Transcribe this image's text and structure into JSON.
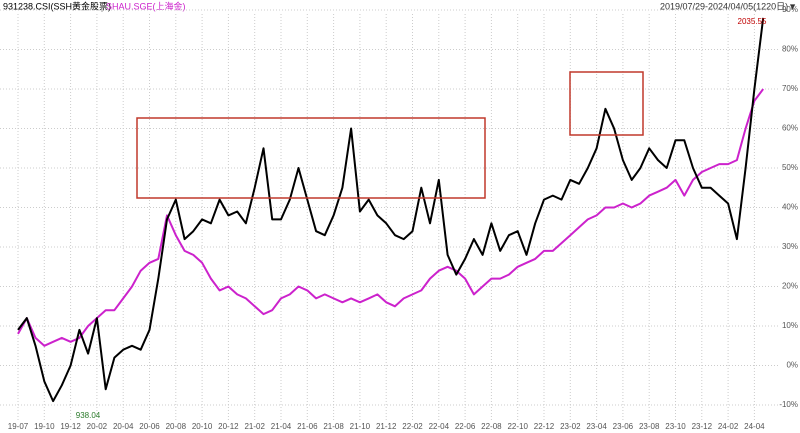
{
  "chart_data": {
    "type": "line",
    "date_range": "2019/07/29-2024/04/05(1220日)▼",
    "categories": [
      "19-07",
      null,
      null,
      "19-10",
      null,
      null,
      "19-12",
      null,
      null,
      "20-02",
      null,
      null,
      "20-04",
      null,
      null,
      "20-06",
      null,
      null,
      "20-08",
      null,
      null,
      "20-10",
      null,
      null,
      "20-12",
      null,
      null,
      "21-02",
      null,
      null,
      "21-04",
      null,
      null,
      "21-06",
      null,
      null,
      "21-08",
      null,
      null,
      "21-10",
      null,
      null,
      "21-12",
      null,
      null,
      "22-02",
      null,
      null,
      "22-04",
      null,
      null,
      "22-06",
      null,
      null,
      "22-08",
      null,
      null,
      "22-10",
      null,
      null,
      "22-12",
      null,
      null,
      "23-02",
      null,
      null,
      "23-04",
      null,
      null,
      "23-06",
      null,
      null,
      "23-08",
      null,
      null,
      "23-10",
      null,
      null,
      "23-12",
      null,
      null,
      "24-02",
      null,
      null,
      "24-04",
      null
    ],
    "series": [
      {
        "name": "931238.CSI(SSH黄金股票)",
        "color": "#000000",
        "values": [
          9,
          12,
          5,
          -4,
          -9,
          -5,
          0,
          9,
          3,
          12,
          -6,
          2,
          4,
          5,
          4,
          9,
          22,
          37,
          42,
          32,
          34,
          37,
          36,
          42,
          38,
          39,
          36,
          45,
          55,
          37,
          37,
          42,
          50,
          42,
          34,
          33,
          38,
          45,
          60,
          39,
          42,
          38,
          36,
          33,
          32,
          34,
          45,
          36,
          47,
          28,
          23,
          27,
          32,
          28,
          36,
          29,
          33,
          34,
          28,
          36,
          42,
          43,
          42,
          47,
          46,
          50,
          55,
          65,
          60,
          52,
          47,
          50,
          55,
          52,
          50,
          57,
          57,
          50,
          45,
          45,
          43,
          41,
          32,
          50,
          70,
          88
        ]
      },
      {
        "name": "SHAU.SGE(上海金)",
        "color": "#cc22cc",
        "values": [
          8,
          12,
          7,
          5,
          6,
          7,
          6,
          7,
          10,
          12,
          14,
          14,
          17,
          20,
          24,
          26,
          27,
          38,
          33,
          29,
          28,
          26,
          22,
          19,
          20,
          18,
          17,
          15,
          13,
          14,
          17,
          18,
          20,
          19,
          17,
          18,
          17,
          16,
          17,
          16,
          17,
          18,
          16,
          15,
          17,
          18,
          19,
          22,
          24,
          25,
          24,
          22,
          18,
          20,
          22,
          22,
          23,
          25,
          26,
          27,
          29,
          29,
          31,
          33,
          35,
          37,
          38,
          40,
          40,
          41,
          40,
          41,
          43,
          44,
          45,
          47,
          43,
          47,
          49,
          50,
          51,
          51,
          52,
          60,
          67,
          70
        ]
      }
    ],
    "ylim": [
      -10,
      90
    ],
    "yticks": [
      {
        "value": 90,
        "label": "90%"
      },
      {
        "value": 80,
        "label": "80%"
      },
      {
        "value": 70,
        "label": "70%"
      },
      {
        "value": 60,
        "label": "60%"
      },
      {
        "value": 50,
        "label": "50%"
      },
      {
        "value": 40,
        "label": "40%"
      },
      {
        "value": 30,
        "label": "30%"
      },
      {
        "value": 20,
        "label": "20%"
      },
      {
        "value": 10,
        "label": "10%"
      },
      {
        "value": 0,
        "label": "0%"
      },
      {
        "value": -10,
        "label": "-10%"
      }
    ],
    "grid": true,
    "annotations": [
      "2035.55",
      "938.04"
    ]
  }
}
